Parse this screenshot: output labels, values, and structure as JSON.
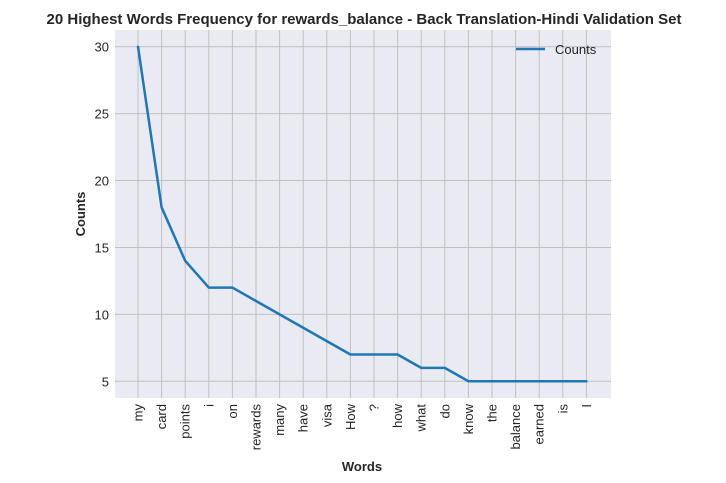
{
  "chart_data": {
    "type": "line",
    "title": "20 Highest Words Frequency for rewards_balance - Back Translation-Hindi Validation Set",
    "xlabel": "Words",
    "ylabel": "Counts",
    "categories": [
      "my",
      "card",
      "points",
      "i",
      "on",
      "rewards",
      "many",
      "have",
      "visa",
      "How",
      "?",
      "how",
      "what",
      "do",
      "know",
      "the",
      "balance",
      "earned",
      "is",
      "I"
    ],
    "series": [
      {
        "name": "Counts",
        "values": [
          30,
          18,
          14,
          12,
          12,
          11,
          10,
          9,
          8,
          7,
          7,
          7,
          6,
          6,
          5,
          5,
          5,
          5,
          5,
          5
        ]
      }
    ],
    "yticks": [
      5,
      10,
      15,
      20,
      25,
      30
    ],
    "ylim": [
      3.75,
      31.25
    ],
    "grid": true,
    "legend_position": "top-right",
    "colors": {
      "line": "#1f77b4",
      "background": "#eaeaf2",
      "grid": "#c0c0c6"
    }
  }
}
